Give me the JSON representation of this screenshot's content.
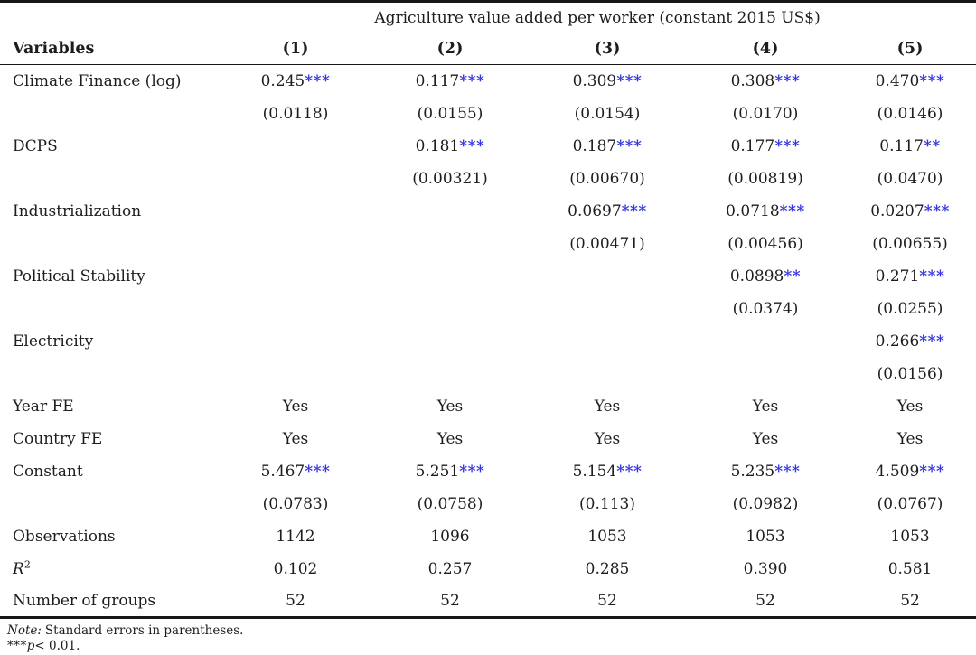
{
  "page": {
    "spanner_title": "Agriculture value added per worker (constant 2015 US$)",
    "variables_header": "Variables",
    "column_headers": [
      "(1)",
      "(2)",
      "(3)",
      "(4)",
      "(5)"
    ],
    "rows": [
      {
        "label": "Climate Finance (log)",
        "cells": [
          "0.245***",
          "0.117***",
          "0.309***",
          "0.308***",
          "0.470***"
        ]
      },
      {
        "label": "",
        "cells": [
          "(0.0118)",
          "(0.0155)",
          "(0.0154)",
          "(0.0170)",
          "(0.0146)"
        ]
      },
      {
        "label": "DCPS",
        "cells": [
          "",
          "0.181***",
          "0.187***",
          "0.177***",
          "0.117**"
        ]
      },
      {
        "label": "",
        "cells": [
          "",
          "(0.00321)",
          "(0.00670)",
          "(0.00819)",
          "(0.0470)"
        ]
      },
      {
        "label": "Industrialization",
        "cells": [
          "",
          "",
          "0.0697***",
          "0.0718***",
          "0.0207***"
        ]
      },
      {
        "label": "",
        "cells": [
          "",
          "",
          "(0.00471)",
          "(0.00456)",
          "(0.00655)"
        ]
      },
      {
        "label": "Political Stability",
        "cells": [
          "",
          "",
          "",
          "0.0898**",
          "0.271***"
        ]
      },
      {
        "label": "",
        "cells": [
          "",
          "",
          "",
          "(0.0374)",
          "(0.0255)"
        ]
      },
      {
        "label": "Electricity",
        "cells": [
          "",
          "",
          "",
          "",
          "0.266***"
        ]
      },
      {
        "label": "",
        "cells": [
          "",
          "",
          "",
          "",
          "(0.0156)"
        ]
      },
      {
        "label": "Year FE",
        "cells": [
          "Yes",
          "Yes",
          "Yes",
          "Yes",
          "Yes"
        ]
      },
      {
        "label": "Country FE",
        "cells": [
          "Yes",
          "Yes",
          "Yes",
          "Yes",
          "Yes"
        ]
      },
      {
        "label": "Constant",
        "cells": [
          "5.467***",
          "5.251***",
          "5.154***",
          "5.235***",
          "4.509***"
        ]
      },
      {
        "label": "",
        "cells": [
          "(0.0783)",
          "(0.0758)",
          "(0.113)",
          "(0.0982)",
          "(0.0767)"
        ]
      },
      {
        "label": "Observations",
        "cells": [
          "1142",
          "1096",
          "1053",
          "1053",
          "1053"
        ]
      },
      {
        "label_main": "R",
        "label_sup": "2",
        "cells": [
          "0.102",
          "0.257",
          "0.285",
          "0.390",
          "0.581"
        ]
      },
      {
        "label": "Number of groups",
        "cells": [
          "52",
          "52",
          "52",
          "52",
          "52"
        ]
      }
    ],
    "notes": {
      "note_label": "Note:",
      "note_text": "Standard errors in parentheses.",
      "sig_stars": "***",
      "sig_p": "p",
      "sig_rest": "< 0.01."
    },
    "colors": {
      "star_color": "#3535df",
      "text_color": "#1d1d1d",
      "rule_color": "#161616"
    }
  }
}
